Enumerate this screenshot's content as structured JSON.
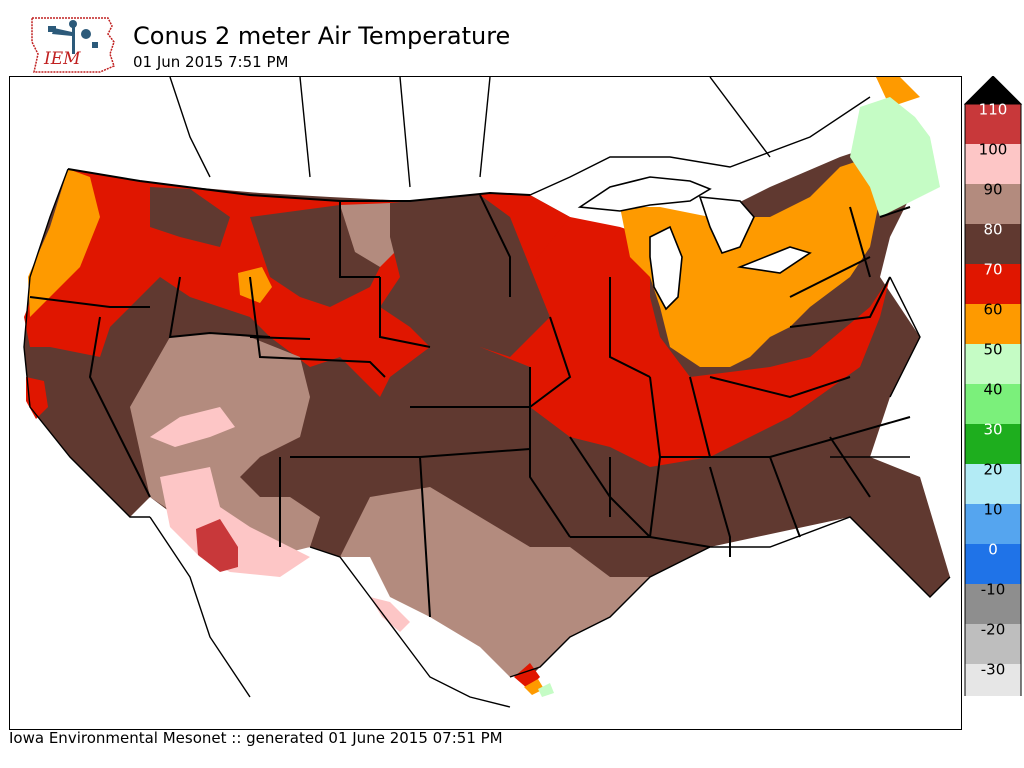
{
  "header": {
    "logo_text": "IEM",
    "title": "Conus 2 meter Air Temperature",
    "subtitle": "01 Jun 2015 7:51 PM"
  },
  "footer": {
    "credit": "Iowa Environmental Mesonet :: generated 01 June 2015 07:51 PM"
  },
  "legend": {
    "levels": [
      {
        "label": "110",
        "color": "#c8383a"
      },
      {
        "label": "100",
        "color": "#fdc6c6"
      },
      {
        "label": "90",
        "color": "#b38b7e"
      },
      {
        "label": "80",
        "color": "#603930"
      },
      {
        "label": "70",
        "color": "#e01600"
      },
      {
        "label": "60",
        "color": "#fe9a00"
      },
      {
        "label": "50",
        "color": "#c5fcc5"
      },
      {
        "label": "40",
        "color": "#7bf07b"
      },
      {
        "label": "30",
        "color": "#1eae1e"
      },
      {
        "label": "20",
        "color": "#b3ebf5"
      },
      {
        "label": "10",
        "color": "#55a5ef"
      },
      {
        "label": "0",
        "color": "#1f73e8"
      },
      {
        "label": "-10",
        "color": "#8e8e8e"
      },
      {
        "label": "-20",
        "color": "#bebebe"
      },
      {
        "label": "-30",
        "color": "#e6e6e6"
      }
    ],
    "over_color": "#000000",
    "under_color": "#ffffff"
  }
}
